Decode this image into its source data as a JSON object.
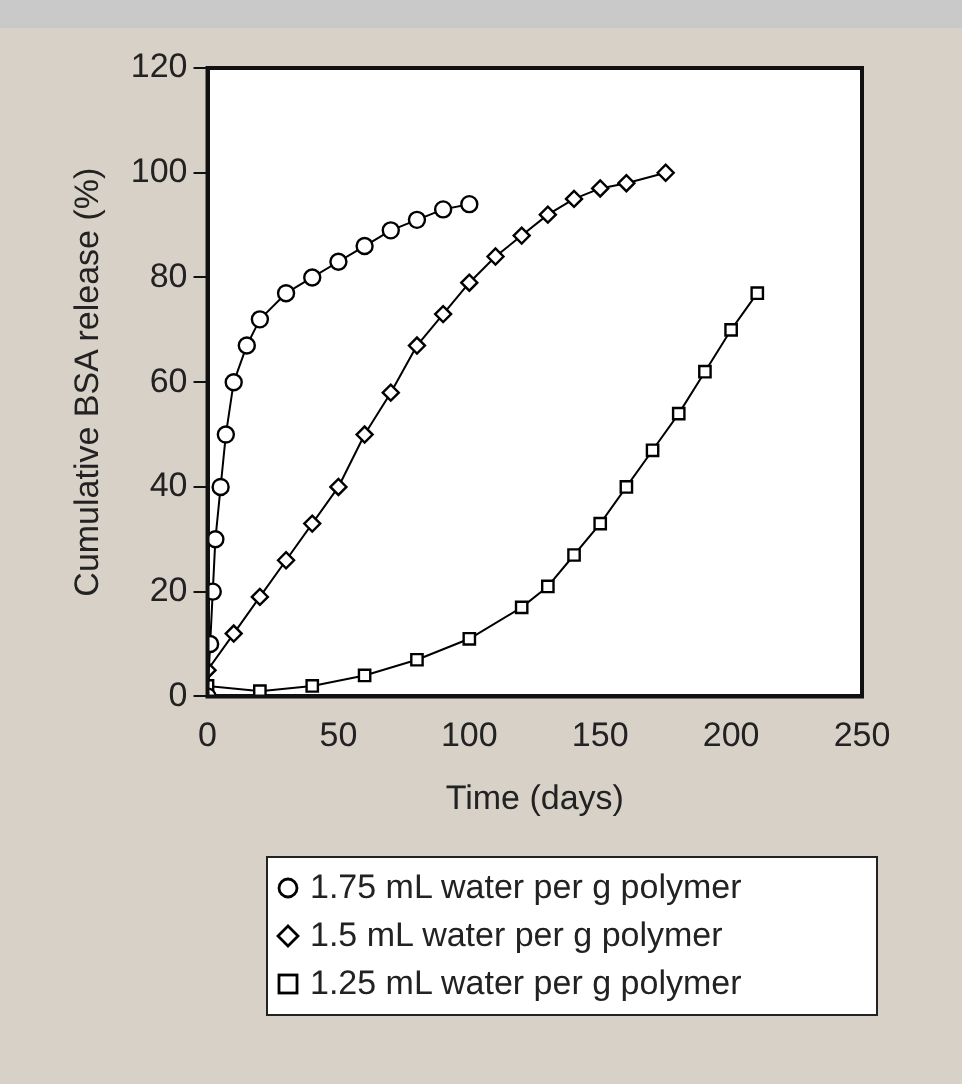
{
  "chart_data": {
    "type": "line",
    "xlabel": "Time (days)",
    "ylabel": "Cumulative BSA release (%)",
    "xlim": [
      0,
      250
    ],
    "xticks": [
      0,
      50,
      100,
      150,
      200,
      250
    ],
    "ylim": [
      0,
      120
    ],
    "yticks": [
      0,
      20,
      40,
      60,
      80,
      100,
      120
    ],
    "grid": false,
    "legend": "bottom",
    "series": [
      {
        "name": "1.75 mL water per g polymer",
        "color": "#000000",
        "marker": "circle",
        "x": [
          0,
          1,
          2,
          3,
          5,
          7,
          10,
          15,
          20,
          30,
          40,
          50,
          60,
          70,
          80,
          90,
          100
        ],
        "values": [
          0,
          10,
          20,
          30,
          40,
          50,
          60,
          67,
          72,
          77,
          80,
          83,
          86,
          89,
          91,
          93,
          94
        ]
      },
      {
        "name": "1.5 mL water per g polymer",
        "color": "#000000",
        "marker": "diamond",
        "x": [
          0,
          10,
          20,
          30,
          40,
          50,
          60,
          70,
          80,
          90,
          100,
          110,
          120,
          130,
          140,
          150,
          160,
          175
        ],
        "values": [
          5,
          12,
          19,
          26,
          33,
          40,
          50,
          58,
          67,
          73,
          79,
          84,
          88,
          92,
          95,
          97,
          98,
          100
        ]
      },
      {
        "name": "1.25 mL water per g polymer",
        "color": "#000000",
        "marker": "square",
        "x": [
          0,
          20,
          40,
          60,
          80,
          100,
          120,
          130,
          140,
          150,
          160,
          170,
          180,
          190,
          200,
          210
        ],
        "values": [
          2,
          1,
          2,
          4,
          7,
          11,
          17,
          21,
          27,
          33,
          40,
          47,
          54,
          62,
          70,
          77
        ]
      }
    ]
  }
}
